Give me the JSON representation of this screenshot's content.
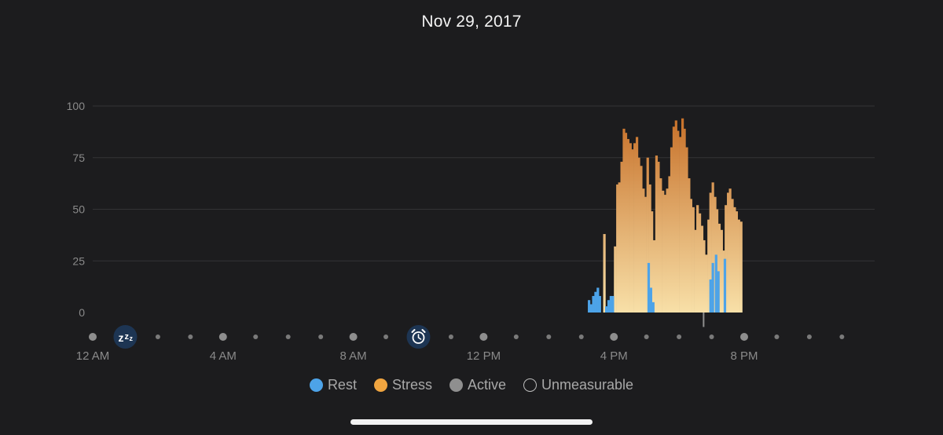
{
  "screen": {
    "date_title": "Nov 29, 2017"
  },
  "colors": {
    "background": "#1c1c1e",
    "rest": "#4da3e8",
    "stress_top": "#c46a22",
    "stress_bottom": "#f8e0a8",
    "active": "#8f8f8f",
    "grid": "#333336",
    "icon_badge": "#1d3553"
  },
  "icons": {
    "sleep": "zzz-sleep-icon",
    "wake": "alarm-clock-icon"
  },
  "legend": [
    {
      "label": "Rest",
      "kind": "rest"
    },
    {
      "label": "Stress",
      "kind": "stress"
    },
    {
      "label": "Active",
      "kind": "active"
    },
    {
      "label": "Unmeasurable",
      "kind": "unmeasurable"
    }
  ],
  "chart_data": {
    "type": "bar",
    "title": "Nov 29, 2017",
    "xlabel": "",
    "ylabel": "",
    "ylim": [
      0,
      100
    ],
    "yticks": [
      0,
      25,
      50,
      75,
      100
    ],
    "xlim_hours": [
      0,
      23.9
    ],
    "xtick_labels": [
      {
        "hour": 0,
        "label": "12 AM"
      },
      {
        "hour": 4,
        "label": "4 AM"
      },
      {
        "hour": 8,
        "label": "8 AM"
      },
      {
        "hour": 12,
        "label": "12 PM"
      },
      {
        "hour": 16,
        "label": "4 PM"
      },
      {
        "hour": 20,
        "label": "8 PM"
      }
    ],
    "sleep_marker_hour": 1,
    "wake_marker_hour": 10,
    "grid": true,
    "legend_position": "bottom",
    "series": [
      {
        "name": "Rest",
        "points": [
          [
            15.2,
            6
          ],
          [
            15.27,
            4
          ],
          [
            15.33,
            8
          ],
          [
            15.4,
            10
          ],
          [
            15.47,
            12
          ],
          [
            15.53,
            8
          ],
          [
            15.73,
            3
          ],
          [
            15.8,
            6
          ],
          [
            15.87,
            8
          ],
          [
            15.93,
            8
          ],
          [
            17.03,
            24
          ],
          [
            17.1,
            12
          ],
          [
            17.17,
            5
          ],
          [
            18.93,
            16
          ],
          [
            19.0,
            24
          ],
          [
            19.1,
            28
          ],
          [
            19.17,
            20
          ],
          [
            19.37,
            26
          ]
        ]
      },
      {
        "name": "Stress",
        "points": [
          [
            15.67,
            38
          ],
          [
            16.0,
            32
          ],
          [
            16.07,
            62
          ],
          [
            16.13,
            63
          ],
          [
            16.2,
            73
          ],
          [
            16.27,
            89
          ],
          [
            16.33,
            87
          ],
          [
            16.4,
            84
          ],
          [
            16.47,
            82
          ],
          [
            16.53,
            79
          ],
          [
            16.6,
            82
          ],
          [
            16.67,
            85
          ],
          [
            16.73,
            75
          ],
          [
            16.8,
            71
          ],
          [
            16.87,
            60
          ],
          [
            16.93,
            56
          ],
          [
            17.0,
            75
          ],
          [
            17.07,
            62
          ],
          [
            17.13,
            49
          ],
          [
            17.2,
            35
          ],
          [
            17.27,
            76
          ],
          [
            17.33,
            73
          ],
          [
            17.4,
            65
          ],
          [
            17.47,
            59
          ],
          [
            17.53,
            57
          ],
          [
            17.6,
            60
          ],
          [
            17.67,
            66
          ],
          [
            17.73,
            80
          ],
          [
            17.8,
            90
          ],
          [
            17.87,
            93
          ],
          [
            17.93,
            88
          ],
          [
            18.0,
            85
          ],
          [
            18.07,
            94
          ],
          [
            18.13,
            89
          ],
          [
            18.2,
            80
          ],
          [
            18.27,
            65
          ],
          [
            18.33,
            55
          ],
          [
            18.4,
            51
          ],
          [
            18.47,
            40
          ],
          [
            18.53,
            52
          ],
          [
            18.6,
            48
          ],
          [
            18.67,
            42
          ],
          [
            18.73,
            35
          ],
          [
            18.8,
            28
          ],
          [
            18.87,
            45
          ],
          [
            18.93,
            58
          ],
          [
            19.0,
            63
          ],
          [
            19.07,
            56
          ],
          [
            19.13,
            50
          ],
          [
            19.2,
            43
          ],
          [
            19.27,
            40
          ],
          [
            19.33,
            30
          ],
          [
            19.4,
            52
          ],
          [
            19.47,
            58
          ],
          [
            19.53,
            60
          ],
          [
            19.6,
            55
          ],
          [
            19.67,
            51
          ],
          [
            19.73,
            49
          ],
          [
            19.8,
            45
          ],
          [
            19.87,
            44
          ]
        ]
      },
      {
        "name": "Active",
        "points": [
          [
            18.73,
            -7
          ]
        ]
      }
    ]
  }
}
